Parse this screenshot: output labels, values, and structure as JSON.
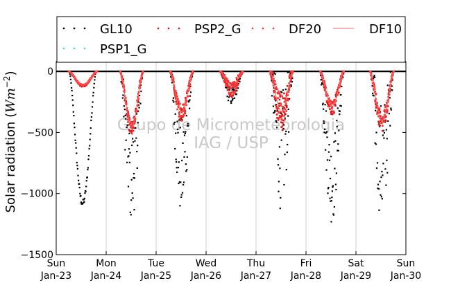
{
  "chart_data": {
    "type": "scatter",
    "title": "",
    "ylabel": "Solar radiation (Wm^-2)",
    "ylabel_prefix": "Solar radiation (",
    "ylabel_unit": "Wm",
    "ylabel_exp": "−2",
    "ylabel_suffix": ")",
    "xlabel": "",
    "ylim": [
      -1500,
      80
    ],
    "xlim": [
      0,
      7
    ],
    "yticks": [
      {
        "value": 0,
        "label": "0"
      },
      {
        "value": -500,
        "label": "−500"
      },
      {
        "value": -1000,
        "label": "−1000"
      },
      {
        "value": -1500,
        "label": "−1500"
      }
    ],
    "xticks": [
      {
        "value": 0,
        "day": "Sun",
        "date": "Jan-23"
      },
      {
        "value": 1,
        "day": "Mon",
        "date": "Jan-24"
      },
      {
        "value": 2,
        "day": "Tue",
        "date": "Jan-25"
      },
      {
        "value": 3,
        "day": "Wed",
        "date": "Jan-26"
      },
      {
        "value": 4,
        "day": "Thu",
        "date": "Jan-27"
      },
      {
        "value": 5,
        "day": "Fri",
        "date": "Jan-28"
      },
      {
        "value": 6,
        "day": "Sat",
        "date": "Jan-29"
      },
      {
        "value": 7,
        "day": "Sun",
        "date": "Jan-30"
      }
    ],
    "grid": "vertical",
    "legend_position": "top",
    "watermark": [
      "Grupo de Micrometeorologia",
      "IAG / USP"
    ],
    "series": [
      {
        "name": "GL10",
        "color": "#000000",
        "style": "dots",
        "days": [
          {
            "start": 0.26,
            "end": 0.8,
            "peak": -1080,
            "scatter": 30
          },
          {
            "start": 1.28,
            "end": 1.74,
            "peak": -850,
            "scatter": 400
          },
          {
            "start": 2.28,
            "end": 2.74,
            "peak": -800,
            "scatter": 420
          },
          {
            "start": 3.28,
            "end": 3.74,
            "peak": -200,
            "scatter": 80
          },
          {
            "start": 4.28,
            "end": 4.74,
            "peak": -650,
            "scatter": 500
          },
          {
            "start": 5.28,
            "end": 5.76,
            "peak": -900,
            "scatter": 350
          },
          {
            "start": 6.28,
            "end": 6.76,
            "peak": -750,
            "scatter": 500
          }
        ]
      },
      {
        "name": "PSP2_G",
        "color": "#dd1111",
        "style": "dots",
        "days": [
          {
            "start": 0.25,
            "end": 0.82,
            "peak": -120,
            "scatter": 8
          },
          {
            "start": 1.28,
            "end": 1.74,
            "peak": -470,
            "scatter": 60
          },
          {
            "start": 2.28,
            "end": 2.74,
            "peak": -350,
            "scatter": 70
          },
          {
            "start": 3.28,
            "end": 3.74,
            "peak": -150,
            "scatter": 60
          },
          {
            "start": 4.28,
            "end": 4.74,
            "peak": -350,
            "scatter": 150
          },
          {
            "start": 5.28,
            "end": 5.76,
            "peak": -300,
            "scatter": 60
          },
          {
            "start": 6.28,
            "end": 6.76,
            "peak": -420,
            "scatter": 80
          }
        ]
      },
      {
        "name": "DF20",
        "color": "#ff3333",
        "style": "dots",
        "days": [
          {
            "start": 0.25,
            "end": 0.82,
            "peak": -115,
            "scatter": 8
          },
          {
            "start": 1.28,
            "end": 1.74,
            "peak": -460,
            "scatter": 60
          },
          {
            "start": 2.28,
            "end": 2.74,
            "peak": -340,
            "scatter": 70
          },
          {
            "start": 3.28,
            "end": 3.74,
            "peak": -140,
            "scatter": 60
          },
          {
            "start": 4.28,
            "end": 4.74,
            "peak": -340,
            "scatter": 150
          },
          {
            "start": 5.28,
            "end": 5.76,
            "peak": -290,
            "scatter": 60
          },
          {
            "start": 6.28,
            "end": 6.76,
            "peak": -410,
            "scatter": 80
          }
        ]
      },
      {
        "name": "DF10",
        "color": "#ff6666",
        "style": "line",
        "days": [
          {
            "start": 0.25,
            "end": 0.82,
            "peak": -112,
            "scatter": 0
          },
          {
            "start": 1.28,
            "end": 1.74,
            "peak": -450,
            "scatter": 0
          },
          {
            "start": 2.28,
            "end": 2.74,
            "peak": -330,
            "scatter": 0
          },
          {
            "start": 3.28,
            "end": 3.74,
            "peak": -130,
            "scatter": 0
          },
          {
            "start": 4.28,
            "end": 4.74,
            "peak": -330,
            "scatter": 0
          },
          {
            "start": 5.28,
            "end": 5.76,
            "peak": -285,
            "scatter": 0
          },
          {
            "start": 6.28,
            "end": 6.76,
            "peak": -400,
            "scatter": 0
          }
        ]
      },
      {
        "name": "PSP1_G",
        "color": "#40e0d0",
        "style": "dots",
        "days": []
      }
    ]
  }
}
